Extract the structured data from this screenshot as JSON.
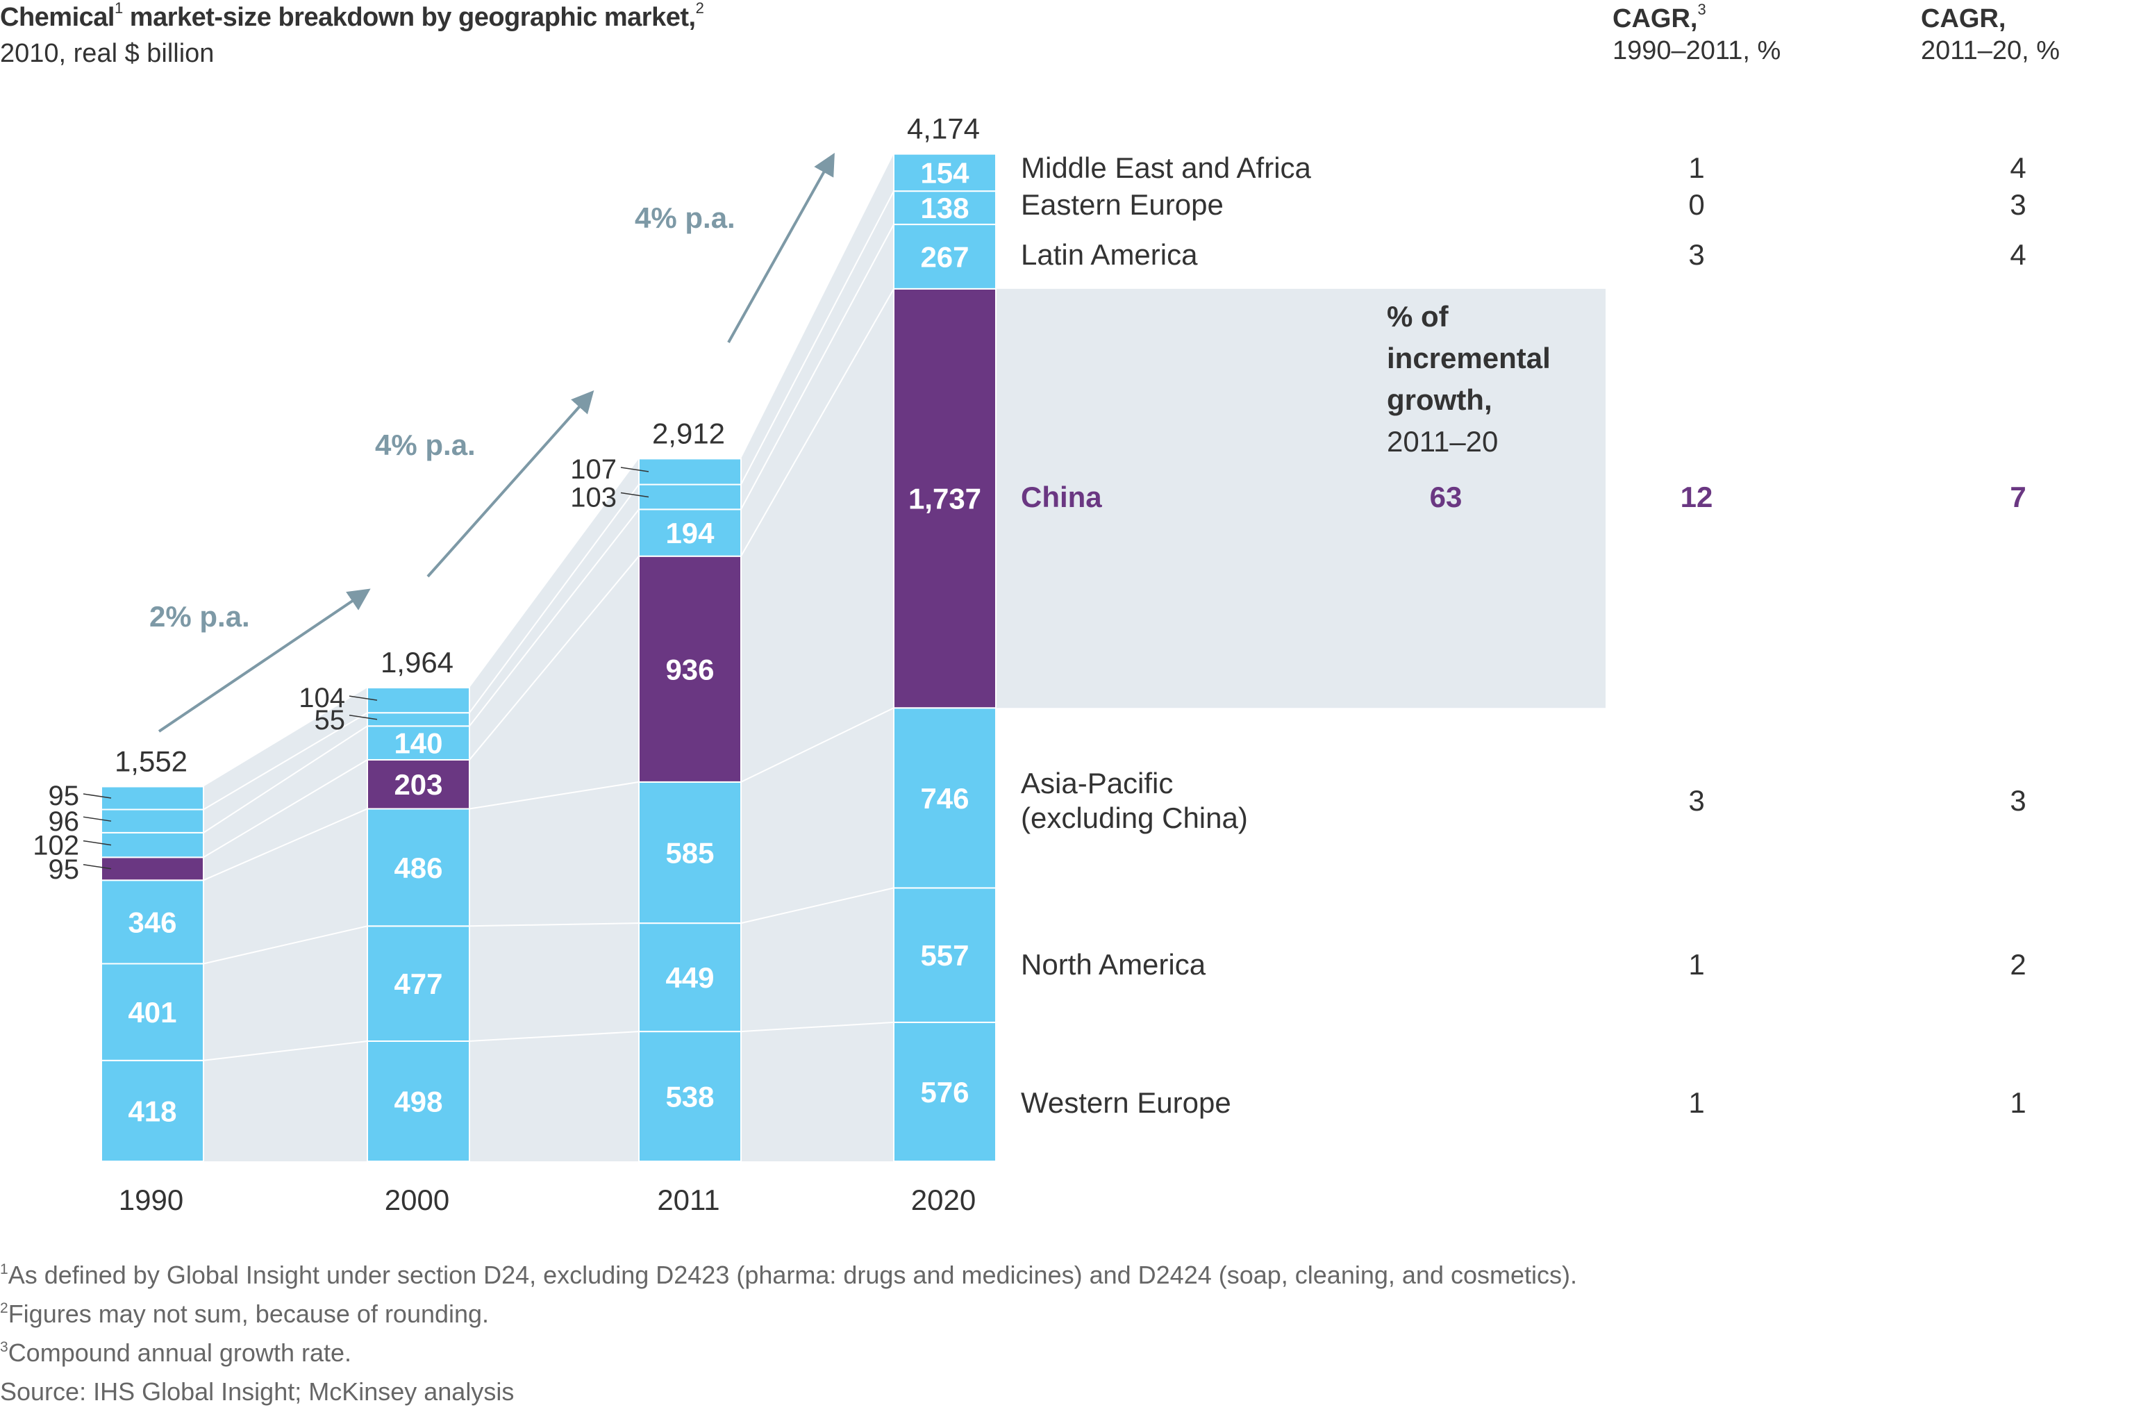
{
  "header": {
    "title": "Chemical",
    "title_sup1": "1",
    "title_rest": " market-size breakdown by geographic market,",
    "title_sup2": "2",
    "subtitle": "2010, real $ billion"
  },
  "columns": {
    "cagr1_title": "CAGR,",
    "cagr1_sup": "3",
    "cagr1_sub": "1990–2011, %",
    "cagr2_title": "CAGR,",
    "cagr2_sub": "2011–20, %",
    "incremental_lines": [
      "% of",
      "incremental",
      "growth,"
    ],
    "incremental_sub": "2011–20"
  },
  "colors": {
    "segment": "#66CCF3",
    "china": "#6A3782",
    "connector_fill": "#E4EAEF",
    "arrow": "#7D99A6",
    "text": "#333333",
    "footnote": "#666666"
  },
  "chart_data": {
    "type": "bar",
    "stacked": true,
    "title": "Chemical market-size breakdown by geographic market",
    "subtitle": "2010, real $ billion",
    "categories": [
      "1990",
      "2000",
      "2011",
      "2020"
    ],
    "totals": [
      1552,
      1964,
      2912,
      4174
    ],
    "series": [
      {
        "name": "Western Europe",
        "values": [
          418,
          498,
          538,
          576
        ],
        "cagr_1990_2011": "1",
        "cagr_2011_20": "1"
      },
      {
        "name": "North America",
        "values": [
          401,
          477,
          449,
          557
        ],
        "cagr_1990_2011": "1",
        "cagr_2011_20": "2"
      },
      {
        "name": "Asia-Pacific (excluding China)",
        "label_lines": [
          "Asia-Pacific",
          "(excluding China)"
        ],
        "values": [
          346,
          486,
          585,
          746
        ],
        "cagr_1990_2011": "3",
        "cagr_2011_20": "3"
      },
      {
        "name": "China",
        "values": [
          95,
          203,
          936,
          1737
        ],
        "cagr_1990_2011": "12",
        "cagr_2011_20": "7",
        "incremental_growth_share": "63",
        "highlight": true
      },
      {
        "name": "Latin America",
        "values": [
          102,
          140,
          194,
          267
        ],
        "cagr_1990_2011": "3",
        "cagr_2011_20": "4"
      },
      {
        "name": "Eastern Europe",
        "values": [
          96,
          55,
          103,
          138
        ],
        "cagr_1990_2011": "0",
        "cagr_2011_20": "3"
      },
      {
        "name": "Middle East and Africa",
        "values": [
          95,
          104,
          107,
          154
        ],
        "cagr_1990_2011": "1",
        "cagr_2011_20": "4"
      }
    ],
    "segment_labels": [
      [
        "418",
        "401",
        "346",
        "95",
        "102",
        "96",
        "95"
      ],
      [
        "498",
        "477",
        "486",
        "203",
        "140",
        "55",
        "104"
      ],
      [
        "538",
        "449",
        "585",
        "936",
        "194",
        "103",
        "107"
      ],
      [
        "576",
        "557",
        "746",
        "1,737",
        "267",
        "138",
        "154"
      ]
    ],
    "total_labels": [
      "1,552",
      "1,964",
      "2,912",
      "4,174"
    ],
    "growth_arrows": [
      {
        "from": "1990",
        "to": "2000",
        "label": "2% p.a."
      },
      {
        "from": "2000",
        "to": "2011",
        "label": "4% p.a."
      },
      {
        "from": "2011",
        "to": "2020",
        "label": "4% p.a."
      }
    ],
    "xlabel": "",
    "ylabel": "",
    "grid": false
  },
  "footnotes": [
    {
      "sup": "1",
      "text": "As defined by Global Insight under section D24, excluding D2423 (pharma: drugs and medicines) and D2424 (soap, cleaning, and cosmetics)."
    },
    {
      "sup": "2",
      "text": "Figures may not sum, because of rounding."
    },
    {
      "sup": "3",
      "text": "Compound annual growth rate."
    },
    {
      "sup": "",
      "text": " Source: IHS Global Insight; McKinsey analysis"
    }
  ]
}
